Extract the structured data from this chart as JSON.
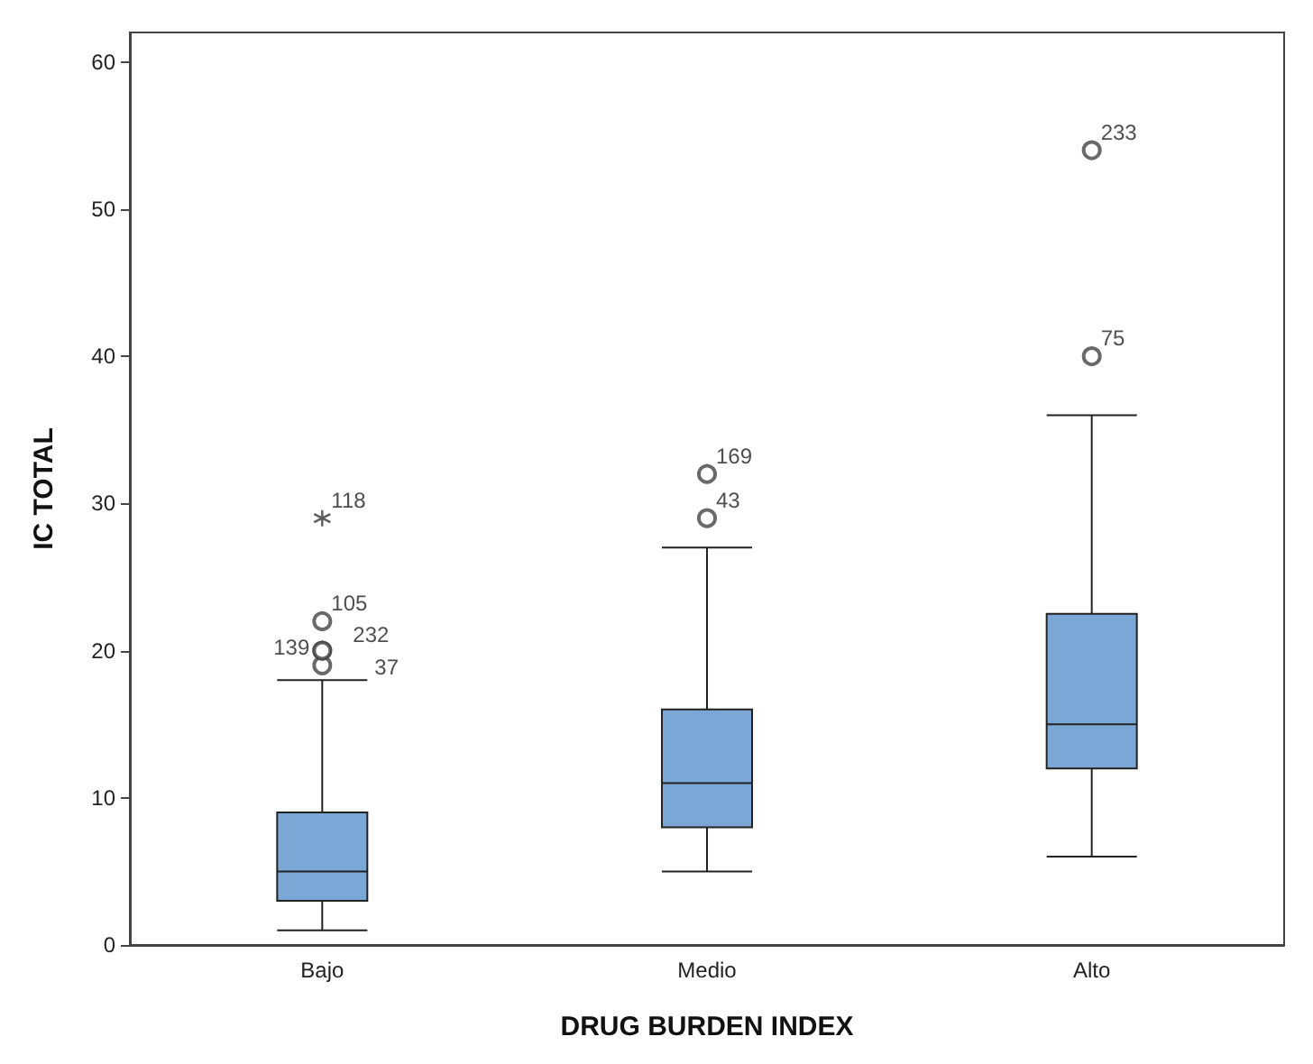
{
  "chart_data": {
    "type": "box",
    "xlabel": "DRUG BURDEN INDEX",
    "ylabel": "IC TOTAL",
    "categories": [
      "Bajo",
      "Medio",
      "Alto"
    ],
    "series": [
      {
        "color": "#7aa7d6",
        "boxes": [
          {
            "low": 1,
            "q1": 3,
            "median": 5,
            "q3": 9,
            "high": 18
          },
          {
            "low": 5,
            "q1": 8,
            "median": 11,
            "q3": 16,
            "high": 27
          },
          {
            "low": 6,
            "q1": 12,
            "median": 15,
            "q3": 22.5,
            "high": 36
          }
        ]
      },
      {
        "type": "scatter",
        "x": [
          "Bajo",
          "Bajo",
          "Bajo",
          "Bajo",
          "Medio",
          "Medio",
          "Alto",
          "Alto"
        ],
        "values": [
          19,
          20,
          20,
          22,
          29,
          32,
          40,
          54
        ],
        "marker": "circle",
        "color": "#444444"
      },
      {
        "type": "scatter",
        "x": [
          "Bajo"
        ],
        "values": [
          29
        ],
        "marker": "cross",
        "color": "#333333"
      }
    ],
    "annotations": [
      {
        "text": "118",
        "x": "Bajo",
        "y": 29
      },
      {
        "text": "105",
        "x": "Bajo",
        "y": 22
      },
      {
        "text": "139",
        "x": "Bajo",
        "y": 20
      },
      {
        "text": "232",
        "x": "Bajo",
        "y": 20
      },
      {
        "text": "37",
        "x": "Bajo",
        "y": 19
      },
      {
        "text": "169",
        "x": "Medio",
        "y": 32
      },
      {
        "text": "43",
        "x": "Medio",
        "y": 29
      },
      {
        "text": "233",
        "x": "Alto",
        "y": 54
      },
      {
        "text": "75",
        "x": "Alto",
        "y": 40
      }
    ],
    "ylim": [
      0,
      62
    ],
    "yticks": [
      0,
      10,
      20,
      30,
      40,
      50,
      60
    ],
    "grid": false
  }
}
